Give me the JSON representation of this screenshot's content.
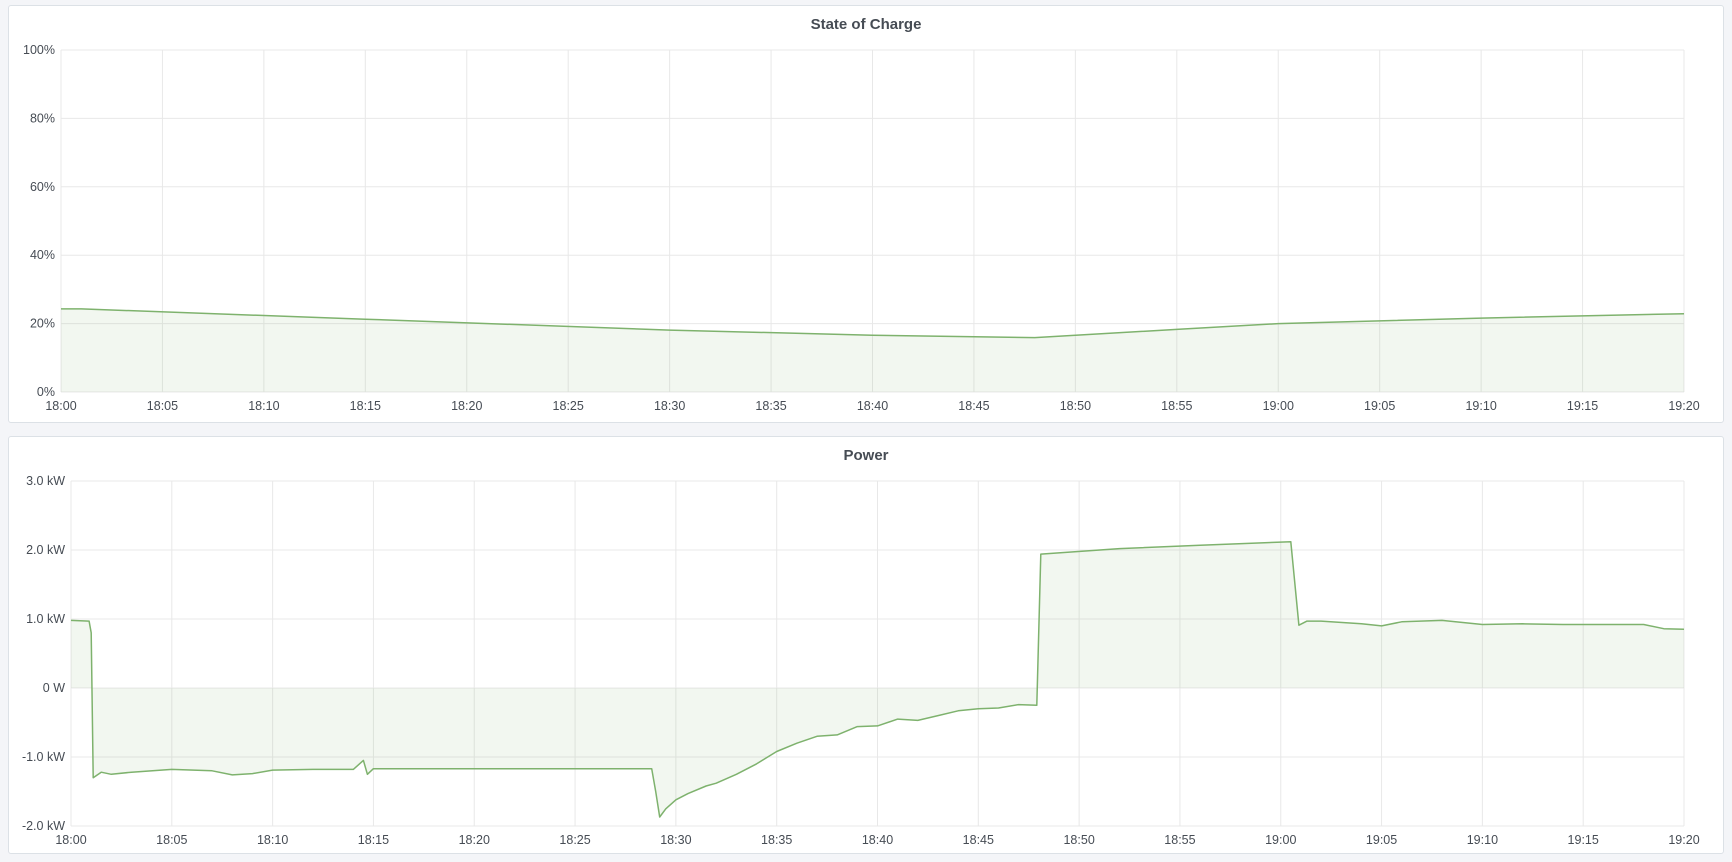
{
  "colors": {
    "line": "#7eb26d",
    "fill": "#7eb26d",
    "grid": "#e8e8e8",
    "background": "#f4f5f8",
    "panel": "#ffffff"
  },
  "chart_data": [
    {
      "type": "area",
      "title": "State of Charge",
      "xlim": [
        "18:00",
        "19:20"
      ],
      "ylim": [
        0,
        100
      ],
      "grid": true,
      "legend": "none",
      "x_ticks": [
        "18:00",
        "18:05",
        "18:10",
        "18:15",
        "18:20",
        "18:25",
        "18:30",
        "18:35",
        "18:40",
        "18:45",
        "18:50",
        "18:55",
        "19:00",
        "19:05",
        "19:10",
        "19:15",
        "19:20"
      ],
      "y_ticks": [
        {
          "value": 0,
          "label": "0%"
        },
        {
          "value": 20,
          "label": "20%"
        },
        {
          "value": 40,
          "label": "40%"
        },
        {
          "value": 60,
          "label": "60%"
        },
        {
          "value": 80,
          "label": "80%"
        },
        {
          "value": 100,
          "label": "100%"
        }
      ],
      "x": [
        "18:00:00",
        "18:01:00",
        "18:15:00",
        "18:30:00",
        "18:40:00",
        "18:48:00",
        "18:55:00",
        "19:00:00",
        "19:10:00",
        "19:20:00"
      ],
      "values": [
        24.3,
        24.3,
        21.3,
        18.1,
        16.6,
        15.9,
        18.3,
        20.0,
        21.6,
        22.9
      ]
    },
    {
      "type": "area",
      "title": "Power",
      "xlim": [
        "18:00",
        "19:20"
      ],
      "ylim": [
        -2.0,
        3.0
      ],
      "grid": true,
      "legend": "none",
      "x_ticks": [
        "18:00",
        "18:05",
        "18:10",
        "18:15",
        "18:20",
        "18:25",
        "18:30",
        "18:35",
        "18:40",
        "18:45",
        "18:50",
        "18:55",
        "19:00",
        "19:05",
        "19:10",
        "19:15",
        "19:20"
      ],
      "y_ticks": [
        {
          "value": -2,
          "label": "-2.0 kW"
        },
        {
          "value": -1,
          "label": "-1.0 kW"
        },
        {
          "value": 0,
          "label": "0 W"
        },
        {
          "value": 1,
          "label": "1.0 kW"
        },
        {
          "value": 2,
          "label": "2.0 kW"
        },
        {
          "value": 3,
          "label": "3.0 kW"
        }
      ],
      "x": [
        "18:00:00",
        "18:00:54",
        "18:01:00",
        "18:01:06",
        "18:01:30",
        "18:02:00",
        "18:03:00",
        "18:05:00",
        "18:07:00",
        "18:08:00",
        "18:09:00",
        "18:10:00",
        "18:12:00",
        "18:14:00",
        "18:14:30",
        "18:14:42",
        "18:15:00",
        "18:20:00",
        "18:25:00",
        "18:28:48",
        "18:29:00",
        "18:29:12",
        "18:29:30",
        "18:30:00",
        "18:30:36",
        "18:31:30",
        "18:32:00",
        "18:33:00",
        "18:34:00",
        "18:35:00",
        "18:36:00",
        "18:37:00",
        "18:38:00",
        "18:39:00",
        "18:40:00",
        "18:41:00",
        "18:42:00",
        "18:43:00",
        "18:44:00",
        "18:45:00",
        "18:46:00",
        "18:47:00",
        "18:47:54",
        "18:48:06",
        "18:52:00",
        "18:56:00",
        "19:00:30",
        "19:00:54",
        "19:01:18",
        "19:02:00",
        "19:04:00",
        "19:05:00",
        "19:06:00",
        "19:08:00",
        "19:10:00",
        "19:12:00",
        "19:14:00",
        "19:16:00",
        "19:18:00",
        "19:19:00",
        "19:20:00"
      ],
      "values": [
        0.98,
        0.97,
        0.8,
        -1.3,
        -1.22,
        -1.25,
        -1.22,
        -1.18,
        -1.2,
        -1.26,
        -1.24,
        -1.19,
        -1.18,
        -1.18,
        -1.05,
        -1.25,
        -1.17,
        -1.17,
        -1.17,
        -1.17,
        -1.5,
        -1.87,
        -1.75,
        -1.62,
        -1.53,
        -1.42,
        -1.38,
        -1.25,
        -1.1,
        -0.92,
        -0.8,
        -0.7,
        -0.68,
        -0.56,
        -0.55,
        -0.45,
        -0.47,
        -0.4,
        -0.33,
        -0.3,
        -0.29,
        -0.24,
        -0.25,
        1.94,
        2.02,
        2.07,
        2.12,
        0.91,
        0.97,
        0.97,
        0.93,
        0.9,
        0.96,
        0.98,
        0.92,
        0.93,
        0.92,
        0.92,
        0.92,
        0.86,
        0.85
      ]
    }
  ]
}
